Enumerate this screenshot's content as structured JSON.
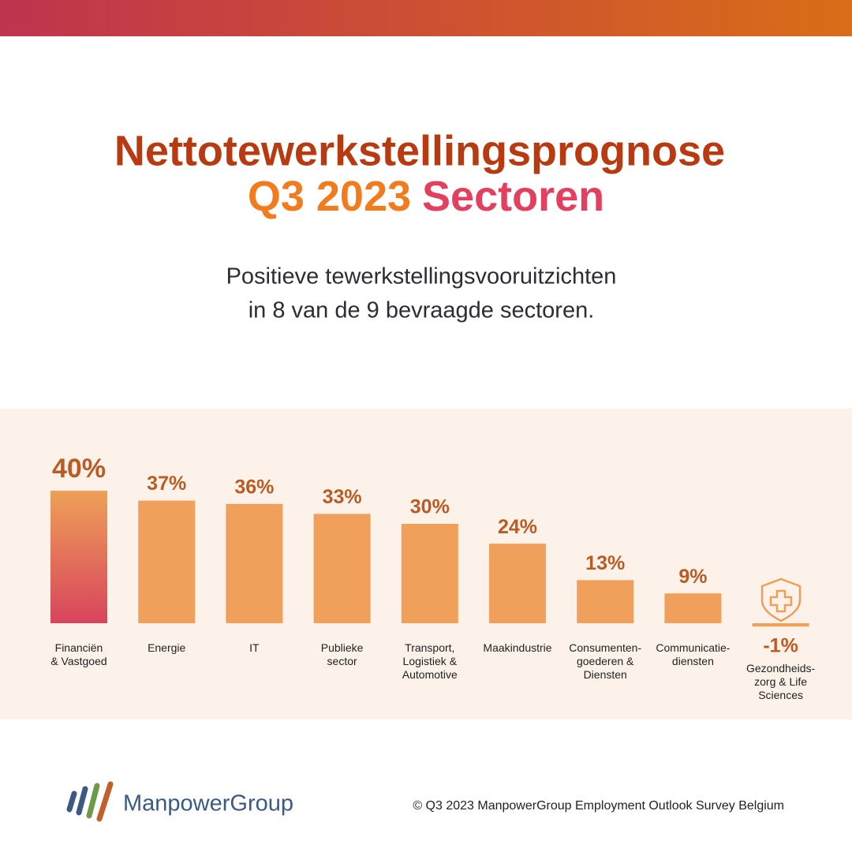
{
  "title": [
    "Nettotewerkstellingsprognose",
    "Q3 2023",
    "Sectoren"
  ],
  "subtitle": [
    "Positieve tewerkstellingsvooruitzichten",
    "in 8 van de 9 bevraagde sectoren."
  ],
  "chart_data": {
    "type": "bar",
    "categories": [
      "Financiën\n& Vastgoed",
      "Energie",
      "IT",
      "Publieke\nsector",
      "Transport,\nLogistiek &\nAutomotive",
      "Maakindustrie",
      "Consumenten-\ngoederen &\nDiensten",
      "Communicatie-\ndiensten",
      "Gezondheids-\nzorg & Life\nSciences"
    ],
    "values": [
      40,
      37,
      36,
      33,
      30,
      24,
      13,
      9,
      -1
    ],
    "value_labels": [
      "40%",
      "37%",
      "36%",
      "33%",
      "30%",
      "24%",
      "13%",
      "9%",
      "-1%"
    ],
    "color": "#f0a05a"
  },
  "footer": {
    "logo": "ManpowerGroup",
    "source": "© Q3 2023 ManpowerGroup Employment Outlook Survey Belgium"
  }
}
